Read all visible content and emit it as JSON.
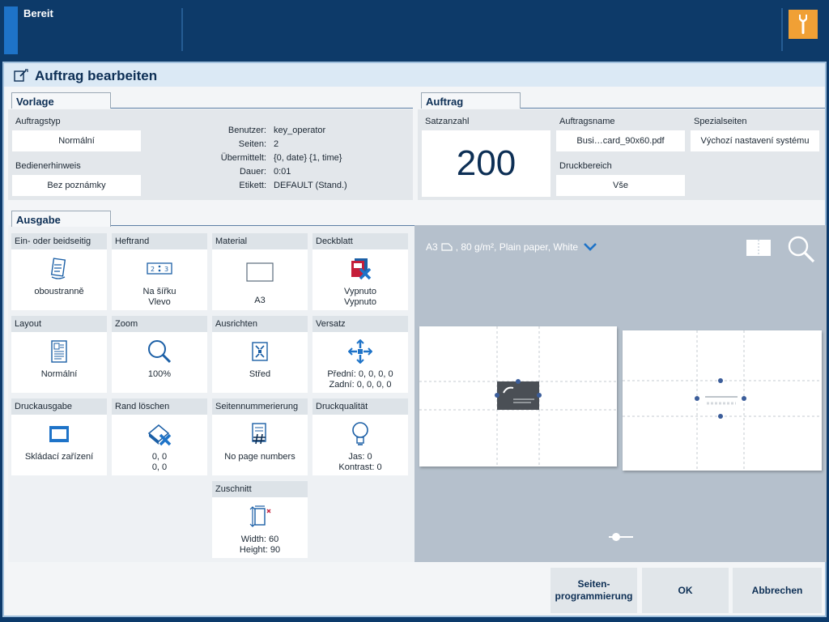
{
  "topbar": {
    "status": "Bereit",
    "accent_color": "#1e73c8",
    "tool_icon": "wrench-icon",
    "tool_color": "#f0a035"
  },
  "dialog": {
    "title": "Auftrag bearbeiten",
    "title_icon": "edit-document-icon"
  },
  "vorlage": {
    "tab": "Vorlage",
    "auftragstyp_label": "Auftragstyp",
    "auftragstyp_value": "Normální",
    "bedienerhinweis_label": "Bedienerhinweis",
    "bedienerhinweis_value": "Bez poznámky",
    "info": [
      {
        "key": "Benutzer:",
        "value": "key_operator"
      },
      {
        "key": "Seiten:",
        "value": "2"
      },
      {
        "key": "Übermittelt:",
        "value": "{0, date} {1, time}"
      },
      {
        "key": "Dauer:",
        "value": "0:01"
      },
      {
        "key": "Etikett:",
        "value": "DEFAULT (Stand.)"
      }
    ]
  },
  "auftrag": {
    "tab": "Auftrag",
    "satzanzahl_label": "Satzanzahl",
    "satzanzahl_value": "200",
    "auftragsname_label": "Auftragsname",
    "auftragsname_value": "Busi…card_90x60.pdf",
    "spezialseiten_label": "Spezialseiten",
    "spezialseiten_value": "Výchozí nastavení systému",
    "druckbereich_label": "Druckbereich",
    "druckbereich_value": "Vše"
  },
  "ausgabe": {
    "tab": "Ausgabe",
    "tiles": [
      {
        "label": "Ein- oder beidseitig",
        "icon": "duplex-icon",
        "v1": "oboustranně",
        "v2": ""
      },
      {
        "label": "Heftrand",
        "icon": "binding-edge-icon",
        "v1": "Na šířku",
        "v2": "Vlevo"
      },
      {
        "label": "Material",
        "icon": "paper-sheet-icon",
        "v1": "A3",
        "v2": ""
      },
      {
        "label": "Deckblatt",
        "icon": "cover-sheet-icon",
        "v1": "Vypnuto",
        "v2": "Vypnuto"
      },
      {
        "label": "Layout",
        "icon": "layout-icon",
        "v1": "Normální",
        "v2": ""
      },
      {
        "label": "Zoom",
        "icon": "zoom-icon",
        "v1": "100%",
        "v2": ""
      },
      {
        "label": "Ausrichten",
        "icon": "align-center-icon",
        "v1": "Střed",
        "v2": ""
      },
      {
        "label": "Versatz",
        "icon": "shift-icon",
        "v1": "Přední: 0, 0, 0, 0",
        "v2": "Zadní: 0, 0, 0, 0"
      },
      {
        "label": "Druckausgabe",
        "icon": "output-tray-icon",
        "v1": "Skládací zařízení",
        "v2": ""
      },
      {
        "label": "Rand löschen",
        "icon": "erase-edge-icon",
        "v1": "0, 0",
        "v2": "0, 0"
      },
      {
        "label": "Seitennummerierung",
        "icon": "page-numbering-icon",
        "v1": "No page numbers",
        "v2": ""
      },
      {
        "label": "Druckqualität",
        "icon": "lightbulb-icon",
        "v1": "Jas: 0",
        "v2": "Kontrast: 0"
      },
      {
        "label": "Zuschnitt",
        "icon": "trim-icon",
        "v1": "Width: 60",
        "v2": "Height: 90"
      }
    ]
  },
  "preview": {
    "media": "A3",
    "media_details": ", 80 g/m², Plain paper, White",
    "dropdown_icon": "chevron-down-icon",
    "view_icon": "book-view-icon",
    "magnifier_icon": "magnifier-icon",
    "pager_icon": "slider-icon"
  },
  "buttons": {
    "seitenprogrammierung_line1": "Seiten-",
    "seitenprogrammierung_line2": "programmierung",
    "ok": "OK",
    "abbrechen": "Abbrechen"
  }
}
